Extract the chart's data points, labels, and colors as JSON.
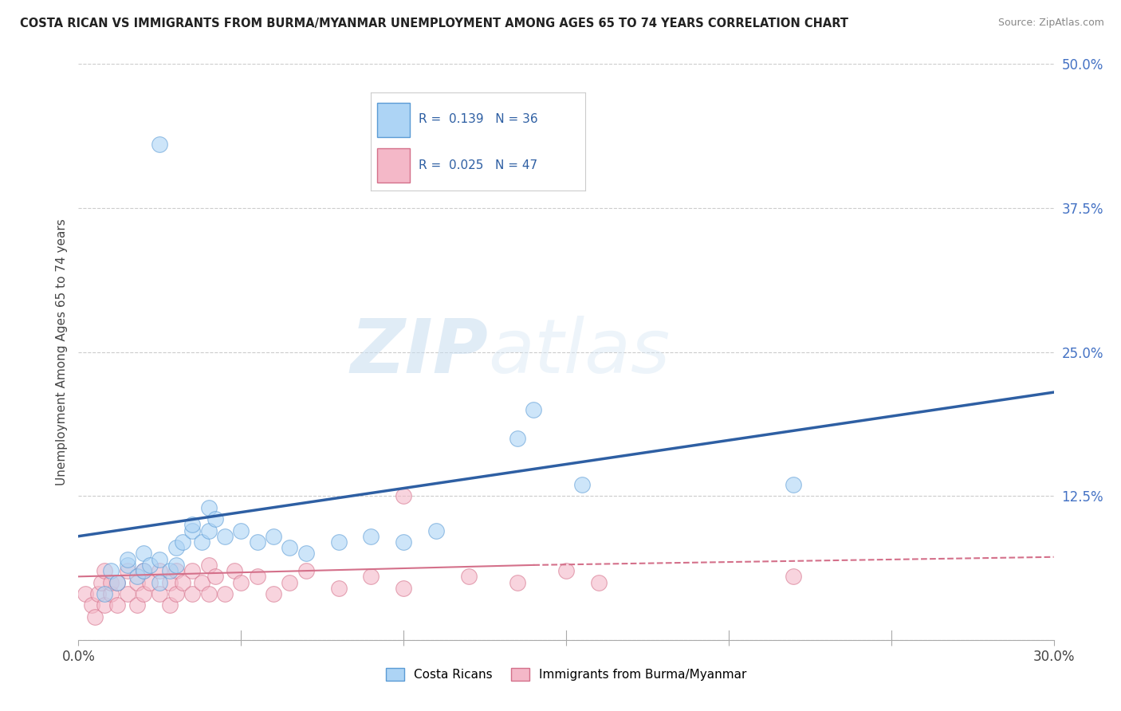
{
  "title": "COSTA RICAN VS IMMIGRANTS FROM BURMA/MYANMAR UNEMPLOYMENT AMONG AGES 65 TO 74 YEARS CORRELATION CHART",
  "source": "Source: ZipAtlas.com",
  "ylabel": "Unemployment Among Ages 65 to 74 years",
  "xlim": [
    0.0,
    0.3
  ],
  "ylim": [
    0.0,
    0.5
  ],
  "xticks": [
    0.0,
    0.05,
    0.1,
    0.15,
    0.2,
    0.25,
    0.3
  ],
  "xticklabels": [
    "0.0%",
    "",
    "",
    "",
    "",
    "",
    "30.0%"
  ],
  "ytick_positions": [
    0.0,
    0.125,
    0.25,
    0.375,
    0.5
  ],
  "yticklabels": [
    "",
    "12.5%",
    "25.0%",
    "37.5%",
    "50.0%"
  ],
  "r_blue": 0.139,
  "n_blue": 36,
  "r_pink": 0.025,
  "n_pink": 47,
  "blue_color": "#add4f5",
  "blue_edge_color": "#5b9bd5",
  "pink_color": "#f4b8c8",
  "pink_edge_color": "#d4708a",
  "blue_line_color": "#2e5fa3",
  "pink_line_color": "#d4708a",
  "watermark_zip": "ZIP",
  "watermark_atlas": "atlas",
  "legend_label_blue": "Costa Ricans",
  "legend_label_pink": "Immigrants from Burma/Myanmar",
  "blue_scatter_x": [
    0.008,
    0.01,
    0.012,
    0.015,
    0.015,
    0.018,
    0.02,
    0.02,
    0.022,
    0.025,
    0.025,
    0.028,
    0.03,
    0.03,
    0.032,
    0.035,
    0.035,
    0.038,
    0.04,
    0.04,
    0.042,
    0.045,
    0.05,
    0.055,
    0.06,
    0.065,
    0.07,
    0.08,
    0.09,
    0.1,
    0.11,
    0.135,
    0.14,
    0.155,
    0.22,
    0.025
  ],
  "blue_scatter_y": [
    0.04,
    0.06,
    0.05,
    0.065,
    0.07,
    0.055,
    0.06,
    0.075,
    0.065,
    0.07,
    0.05,
    0.06,
    0.08,
    0.065,
    0.085,
    0.095,
    0.1,
    0.085,
    0.095,
    0.115,
    0.105,
    0.09,
    0.095,
    0.085,
    0.09,
    0.08,
    0.075,
    0.085,
    0.09,
    0.085,
    0.095,
    0.175,
    0.2,
    0.135,
    0.135,
    0.43
  ],
  "pink_scatter_x": [
    0.002,
    0.004,
    0.005,
    0.006,
    0.007,
    0.008,
    0.008,
    0.01,
    0.01,
    0.012,
    0.012,
    0.015,
    0.015,
    0.018,
    0.018,
    0.02,
    0.02,
    0.022,
    0.025,
    0.025,
    0.028,
    0.028,
    0.03,
    0.03,
    0.032,
    0.035,
    0.035,
    0.038,
    0.04,
    0.04,
    0.042,
    0.045,
    0.048,
    0.05,
    0.055,
    0.06,
    0.065,
    0.07,
    0.08,
    0.09,
    0.1,
    0.12,
    0.135,
    0.15,
    0.16,
    0.22,
    0.1
  ],
  "pink_scatter_y": [
    0.04,
    0.03,
    0.02,
    0.04,
    0.05,
    0.06,
    0.03,
    0.04,
    0.05,
    0.03,
    0.05,
    0.04,
    0.06,
    0.03,
    0.05,
    0.04,
    0.06,
    0.05,
    0.04,
    0.06,
    0.03,
    0.05,
    0.04,
    0.06,
    0.05,
    0.04,
    0.06,
    0.05,
    0.04,
    0.065,
    0.055,
    0.04,
    0.06,
    0.05,
    0.055,
    0.04,
    0.05,
    0.06,
    0.045,
    0.055,
    0.045,
    0.055,
    0.05,
    0.06,
    0.05,
    0.055,
    0.125
  ]
}
